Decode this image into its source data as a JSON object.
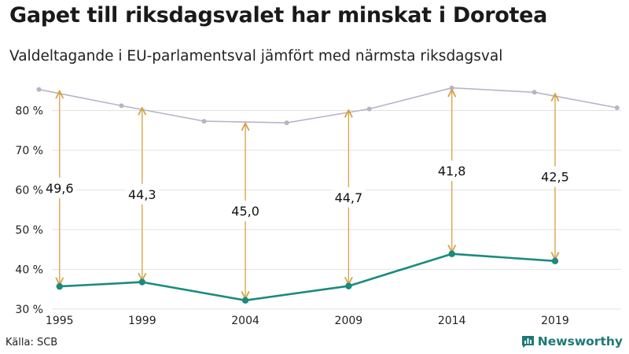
{
  "title": "Gapet till riksdagsvalet har minskat i Dorotea",
  "subtitle": "Valdeltagande i EU-parlamentsval jämfört med närmsta riksdagsval",
  "source": "Källa: SCB",
  "brand": {
    "name": "Newsworthy",
    "icon": "bar-chart-speech-icon"
  },
  "colors": {
    "eu": "#1a8b7e",
    "riksdag": "#b9b3c8",
    "arrow": "#d4a042",
    "grid": "#e2e2e2"
  },
  "chart_data": {
    "type": "line",
    "ylim": [
      28,
      90
    ],
    "xlim": [
      1994.4,
      2022.2
    ],
    "yticks": [
      30,
      40,
      50,
      60,
      70,
      80
    ],
    "ytick_labels": [
      "30 %",
      "40 %",
      "50 %",
      "60 %",
      "70 %",
      "80 %"
    ],
    "xticks": [
      1995,
      1999,
      2004,
      2009,
      2014,
      2019
    ],
    "xtick_labels": [
      "1995",
      "1999",
      "2004",
      "2009",
      "2014",
      "2019"
    ],
    "grid": true,
    "series": [
      {
        "key": "riksdag",
        "x": [
          1994,
          1998,
          2002,
          2006,
          2010,
          2014,
          2018,
          2022
        ],
        "values": [
          85.3,
          81.2,
          77.3,
          76.9,
          80.4,
          85.7,
          84.6,
          80.7
        ]
      },
      {
        "key": "eu",
        "x": [
          1995,
          1999,
          2004,
          2009,
          2014,
          2019
        ],
        "values": [
          35.7,
          36.8,
          32.2,
          35.8,
          43.9,
          42.1
        ]
      }
    ],
    "gaps": [
      {
        "x": 1995,
        "from": 35.7,
        "to": 85.3,
        "label": "49,6"
      },
      {
        "x": 1999,
        "from": 36.8,
        "to": 81.1,
        "label": "44,3"
      },
      {
        "x": 2004,
        "from": 32.2,
        "to": 77.2,
        "label": "45,0"
      },
      {
        "x": 2009,
        "from": 35.8,
        "to": 80.5,
        "label": "44,7"
      },
      {
        "x": 2014,
        "from": 43.9,
        "to": 85.7,
        "label": "41,8"
      },
      {
        "x": 2019,
        "from": 42.1,
        "to": 84.6,
        "label": "42,5"
      }
    ]
  }
}
